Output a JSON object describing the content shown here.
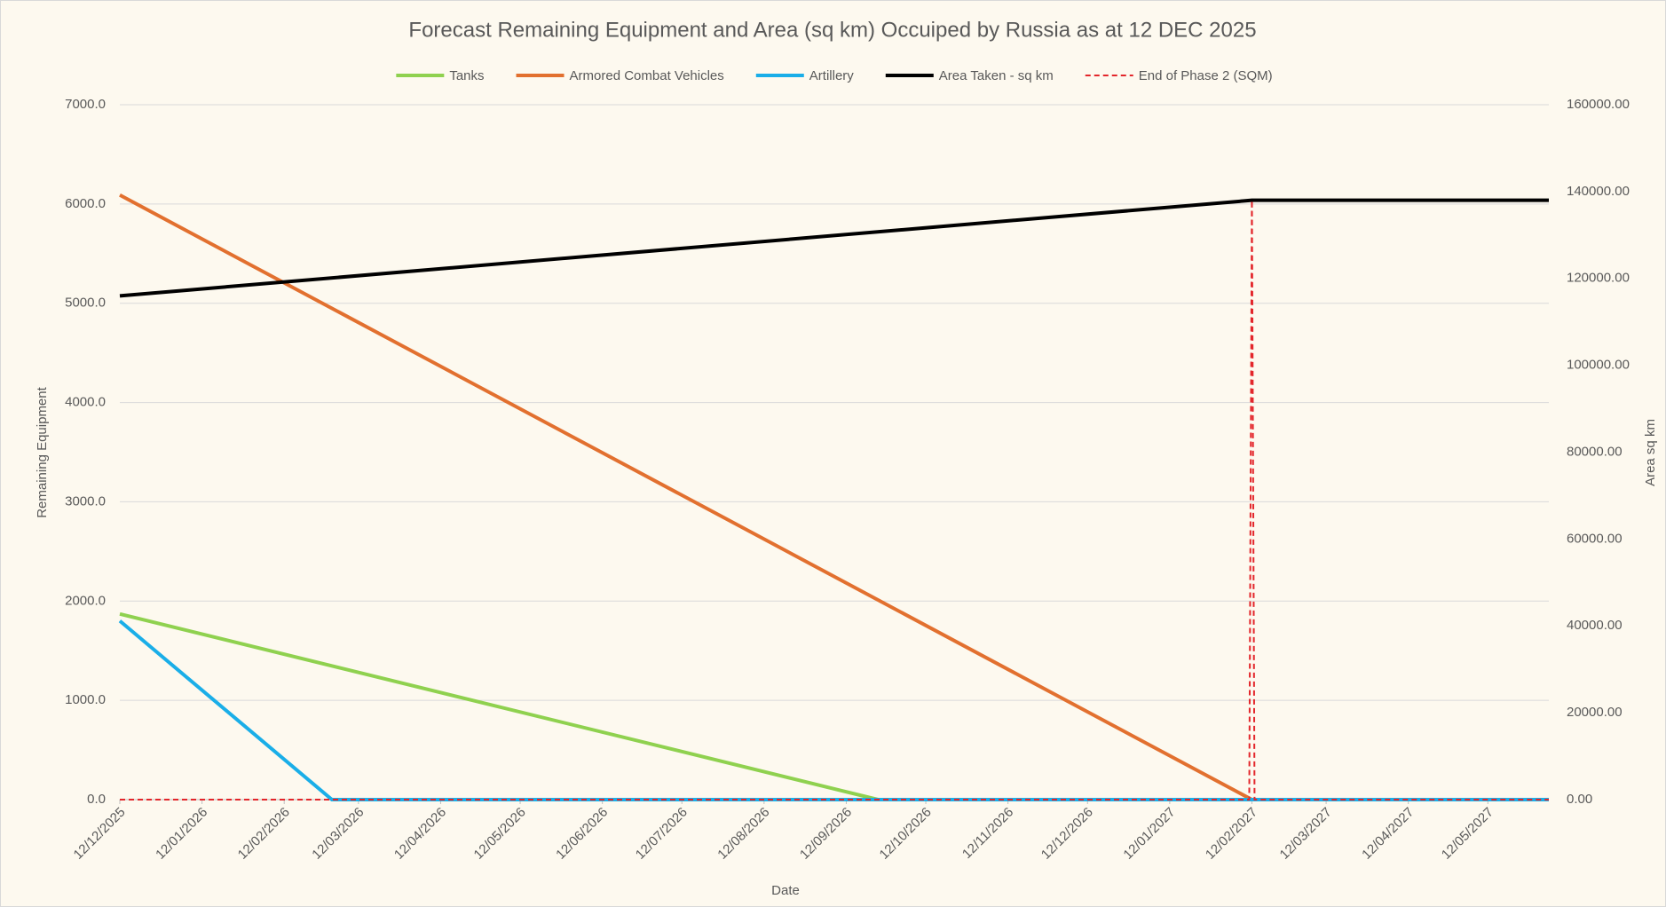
{
  "chart_data": {
    "type": "line",
    "title": "Forecast Remaining Equipment and Area (sq km) Occuiped by Russia as at 12 DEC 2025",
    "x_label": "Date",
    "y_label": "Remaining Equipment",
    "y2_label": "Area sq km",
    "grid": true,
    "legend": "top",
    "xlim": [
      "2025-12-12",
      "2027-06-04"
    ],
    "xticks": [
      {
        "value": "2025-12-12",
        "label": "12/12/2025"
      },
      {
        "value": "2026-01-12",
        "label": "12/01/2026"
      },
      {
        "value": "2026-02-12",
        "label": "12/02/2026"
      },
      {
        "value": "2026-03-12",
        "label": "12/03/2026"
      },
      {
        "value": "2026-04-12",
        "label": "12/04/2026"
      },
      {
        "value": "2026-05-12",
        "label": "12/05/2026"
      },
      {
        "value": "2026-06-12",
        "label": "12/06/2026"
      },
      {
        "value": "2026-07-12",
        "label": "12/07/2026"
      },
      {
        "value": "2026-08-12",
        "label": "12/08/2026"
      },
      {
        "value": "2026-09-12",
        "label": "12/09/2026"
      },
      {
        "value": "2026-10-12",
        "label": "12/10/2026"
      },
      {
        "value": "2026-11-12",
        "label": "12/11/2026"
      },
      {
        "value": "2026-12-12",
        "label": "12/12/2026"
      },
      {
        "value": "2027-01-12",
        "label": "12/01/2027"
      },
      {
        "value": "2027-02-12",
        "label": "12/02/2027"
      },
      {
        "value": "2027-03-12",
        "label": "12/03/2027"
      },
      {
        "value": "2027-04-12",
        "label": "12/04/2027"
      },
      {
        "value": "2027-05-12",
        "label": "12/05/2027"
      }
    ],
    "ylim": [
      0,
      7000
    ],
    "yticks": [
      {
        "value": 0,
        "label": "0.0"
      },
      {
        "value": 1000,
        "label": "1000.0"
      },
      {
        "value": 2000,
        "label": "2000.0"
      },
      {
        "value": 3000,
        "label": "3000.0"
      },
      {
        "value": 4000,
        "label": "4000.0"
      },
      {
        "value": 5000,
        "label": "5000.0"
      },
      {
        "value": 6000,
        "label": "6000.0"
      },
      {
        "value": 7000,
        "label": "7000.0"
      }
    ],
    "y2lim": [
      0,
      160000
    ],
    "y2ticks": [
      {
        "value": 0,
        "label": "0.00"
      },
      {
        "value": 20000,
        "label": "20000.00"
      },
      {
        "value": 40000,
        "label": "40000.00"
      },
      {
        "value": 60000,
        "label": "60000.00"
      },
      {
        "value": 80000,
        "label": "80000.00"
      },
      {
        "value": 100000,
        "label": "100000.00"
      },
      {
        "value": 120000,
        "label": "120000.00"
      },
      {
        "value": 140000,
        "label": "140000.00"
      },
      {
        "value": 160000,
        "label": "160000.00"
      }
    ],
    "series": [
      {
        "name": "Tanks",
        "color": "#8fd14f",
        "x": [
          "2025-12-12",
          "2026-09-24",
          "2027-06-04"
        ],
        "values": [
          1870,
          0,
          0
        ]
      },
      {
        "name": "Armored Combat Vehicles",
        "color": "#e2702f",
        "x": [
          "2025-12-12",
          "2027-02-12",
          "2027-06-04"
        ],
        "values": [
          6090,
          0,
          0
        ]
      },
      {
        "name": "Artillery",
        "color": "#1aaee8",
        "x": [
          "2025-12-12",
          "2026-03-02",
          "2027-06-04"
        ],
        "values": [
          1800,
          0,
          0
        ]
      },
      {
        "name": "Area Taken - sq km",
        "color": "#000000",
        "axis": "y2",
        "x": [
          "2025-12-12",
          "2027-02-12",
          "2027-06-04"
        ],
        "values": [
          116000,
          138000,
          138000
        ]
      },
      {
        "name": "End of Phase 2 (SQM)",
        "color": "#e3262b",
        "axis": "y2",
        "dashed": true,
        "x": [
          "2025-12-12",
          "2027-02-11",
          "2027-02-12",
          "2027-02-13",
          "2027-06-04"
        ],
        "values": [
          0,
          0,
          138000,
          0,
          0
        ]
      }
    ]
  }
}
